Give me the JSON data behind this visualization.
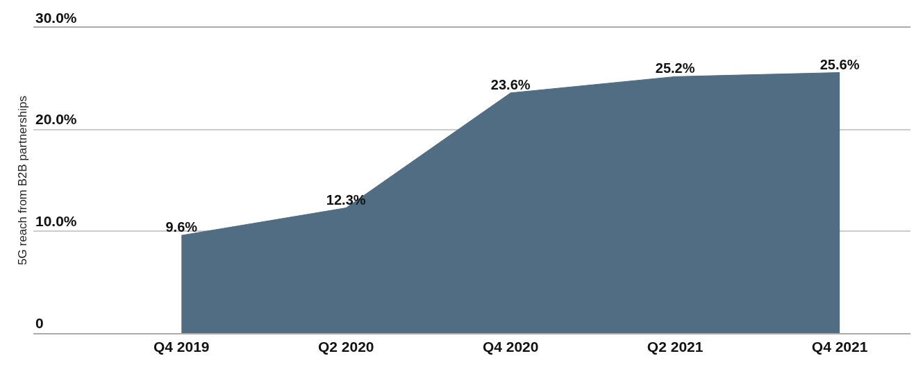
{
  "chart_data": {
    "type": "area",
    "ylabel": "5G reach from B2B partnerships",
    "categories": [
      "Q4 2019",
      "Q2 2020",
      "Q4 2020",
      "Q2 2021",
      "Q4 2021"
    ],
    "values": [
      9.6,
      12.3,
      23.6,
      25.2,
      25.6
    ],
    "value_labels": [
      "9.6%",
      "12.3%",
      "23.6%",
      "25.2%",
      "25.6%"
    ],
    "color": "#516d84",
    "ylim": [
      0,
      30
    ],
    "yticks": [
      {
        "value": 0,
        "label": "0"
      },
      {
        "value": 10,
        "label": "10.0%"
      },
      {
        "value": 20,
        "label": "20.0%"
      },
      {
        "value": 30,
        "label": "30.0%"
      }
    ],
    "grid": "y"
  }
}
